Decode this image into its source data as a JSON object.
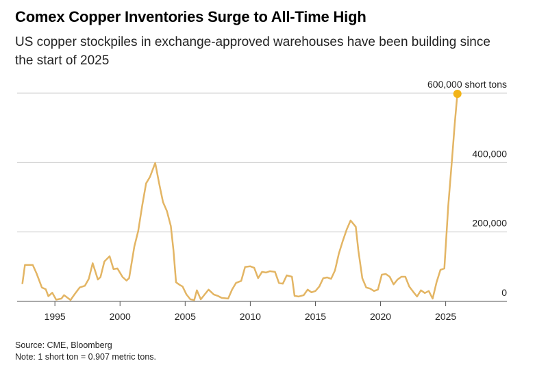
{
  "chart_data": {
    "type": "line",
    "title": "Comex Copper Inventories Surge to All-Time High",
    "subtitle": "US copper stockpiles in exchange-approved warehouses have been building since the start of 2025",
    "source": "Source: CME, Bloomberg",
    "note": "Note: 1 short ton = 0.907 metric tons.",
    "xlim": [
      1992.1,
      2029.7
    ],
    "xticks": [
      1995,
      2000,
      2005,
      2010,
      2015,
      2020,
      2025
    ],
    "ylim": [
      0,
      600000
    ],
    "yticks": [
      0,
      {
        "value": 200000,
        "label": "200,000"
      },
      {
        "value": 400000,
        "label": "400,000"
      },
      {
        "value": 600000,
        "label": "600,000 short tons"
      }
    ],
    "grid": true,
    "marker_color": "#f2b418",
    "series": [
      {
        "color": "#e3b564",
        "x": [
          1992.5,
          1992.7,
          1993.3,
          1993.6,
          1994.0,
          1994.3,
          1994.5,
          1994.8,
          1995.1,
          1995.5,
          1995.7,
          1996.2,
          1996.5,
          1996.9,
          1997.3,
          1997.6,
          1997.9,
          1998.3,
          1998.5,
          1998.8,
          1999.2,
          1999.5,
          1999.8,
          2000.2,
          2000.5,
          2000.7,
          2001.1,
          2001.4,
          2001.7,
          2002.0,
          2002.3,
          2002.7,
          2003.0,
          2003.3,
          2003.6,
          2003.9,
          2004.1,
          2004.3,
          2004.6,
          2004.8,
          2005.1,
          2005.4,
          2005.7,
          2005.9,
          2006.2,
          2006.5,
          2006.8,
          2007.2,
          2007.5,
          2007.8,
          2008.3,
          2008.6,
          2008.9,
          2009.3,
          2009.6,
          2010.0,
          2010.3,
          2010.6,
          2010.9,
          2011.2,
          2011.5,
          2011.9,
          2012.2,
          2012.5,
          2012.8,
          2013.2,
          2013.4,
          2013.7,
          2014.1,
          2014.4,
          2014.7,
          2015.0,
          2015.3,
          2015.6,
          2015.9,
          2016.2,
          2016.5,
          2016.8,
          2017.1,
          2017.4,
          2017.7,
          2018.1,
          2018.3,
          2018.6,
          2018.9,
          2019.2,
          2019.5,
          2019.8,
          2020.1,
          2020.4,
          2020.7,
          2021.0,
          2021.3,
          2021.6,
          2021.9,
          2022.2,
          2022.5,
          2022.8,
          2023.1,
          2023.4,
          2023.7,
          2024.0,
          2024.3,
          2024.6,
          2024.9,
          2025.2,
          2025.5,
          2025.7,
          2025.9
        ],
        "values": [
          50000,
          105000,
          105000,
          80000,
          40000,
          35000,
          15000,
          25000,
          5000,
          8000,
          18000,
          4000,
          20000,
          40000,
          45000,
          65000,
          110000,
          63000,
          70000,
          115000,
          130000,
          93000,
          95000,
          70000,
          60000,
          67000,
          158000,
          203000,
          276000,
          340000,
          359000,
          399000,
          340000,
          286000,
          260000,
          217000,
          148000,
          55000,
          47000,
          43000,
          20000,
          6000,
          4000,
          32000,
          6000,
          20000,
          34000,
          20000,
          16000,
          10000,
          8000,
          34000,
          53000,
          59000,
          99000,
          101000,
          97000,
          67000,
          85000,
          83000,
          87000,
          85000,
          53000,
          51000,
          75000,
          71000,
          16000,
          14000,
          18000,
          34000,
          26000,
          30000,
          43000,
          67000,
          69000,
          65000,
          89000,
          138000,
          174000,
          207000,
          233000,
          215000,
          146000,
          67000,
          40000,
          37000,
          30000,
          34000,
          77000,
          79000,
          71000,
          49000,
          63000,
          71000,
          71000,
          43000,
          28000,
          14000,
          32000,
          24000,
          30000,
          8000,
          55000,
          91000,
          95000,
          276000,
          415000,
          513000,
          598000
        ]
      }
    ]
  }
}
